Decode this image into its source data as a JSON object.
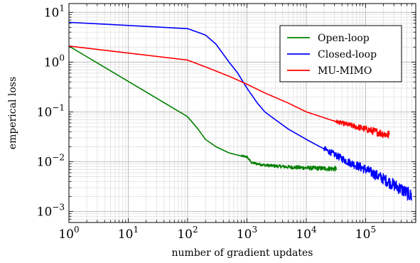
{
  "chart_data": {
    "type": "line",
    "xlabel": "number of gradient updates",
    "ylabel": "emperical loss",
    "xscale": "log",
    "yscale": "log",
    "xlim": [
      1,
      700000
    ],
    "ylim": [
      0.0006,
      15
    ],
    "x_ticks": [
      {
        "base": "10",
        "exp": "0",
        "value": 1
      },
      {
        "base": "10",
        "exp": "1",
        "value": 10
      },
      {
        "base": "10",
        "exp": "2",
        "value": 100
      },
      {
        "base": "10",
        "exp": "3",
        "value": 1000
      },
      {
        "base": "10",
        "exp": "4",
        "value": 10000
      },
      {
        "base": "10",
        "exp": "5",
        "value": 100000
      }
    ],
    "y_ticks": [
      {
        "base": "10",
        "exp": "−3",
        "value": 0.001
      },
      {
        "base": "10",
        "exp": "−2",
        "value": 0.01
      },
      {
        "base": "10",
        "exp": "−1",
        "value": 0.1
      },
      {
        "base": "10",
        "exp": "0",
        "value": 1
      },
      {
        "base": "10",
        "exp": "1",
        "value": 10
      }
    ],
    "grid": true,
    "legend_position": "top-right",
    "series": [
      {
        "name": "Open-loop",
        "color": "#008000",
        "noise": 0.05,
        "noise_from": 800,
        "points": [
          [
            1,
            2.1
          ],
          [
            100,
            0.08
          ],
          [
            150,
            0.045
          ],
          [
            200,
            0.028
          ],
          [
            300,
            0.02
          ],
          [
            500,
            0.015
          ],
          [
            800,
            0.013
          ],
          [
            1000,
            0.0125
          ],
          [
            1200,
            0.0095
          ],
          [
            2000,
            0.0085
          ],
          [
            5000,
            0.0078
          ],
          [
            10000,
            0.0075
          ],
          [
            20000,
            0.0073
          ],
          [
            32000,
            0.0072
          ]
        ]
      },
      {
        "name": "Closed-loop",
        "color": "#0000ff",
        "noise": 0.14,
        "noise_from": 20000,
        "points": [
          [
            1,
            6.3
          ],
          [
            100,
            4.7
          ],
          [
            200,
            3.5
          ],
          [
            300,
            2.3
          ],
          [
            500,
            1.0
          ],
          [
            700,
            0.6
          ],
          [
            1000,
            0.3
          ],
          [
            1500,
            0.15
          ],
          [
            2000,
            0.1
          ],
          [
            3000,
            0.07
          ],
          [
            5000,
            0.045
          ],
          [
            10000,
            0.028
          ],
          [
            20000,
            0.018
          ],
          [
            50000,
            0.01
          ],
          [
            100000,
            0.007
          ],
          [
            200000,
            0.0045
          ],
          [
            400000,
            0.0028
          ],
          [
            600000,
            0.002
          ]
        ]
      },
      {
        "name": "MU-MIMO",
        "color": "#ff0000",
        "noise": 0.09,
        "noise_from": 30000,
        "points": [
          [
            1,
            2.1
          ],
          [
            100,
            1.1
          ],
          [
            200,
            0.8
          ],
          [
            500,
            0.52
          ],
          [
            1000,
            0.36
          ],
          [
            2000,
            0.24
          ],
          [
            5000,
            0.15
          ],
          [
            10000,
            0.1
          ],
          [
            30000,
            0.065
          ],
          [
            100000,
            0.045
          ],
          [
            250000,
            0.034
          ]
        ]
      }
    ]
  }
}
